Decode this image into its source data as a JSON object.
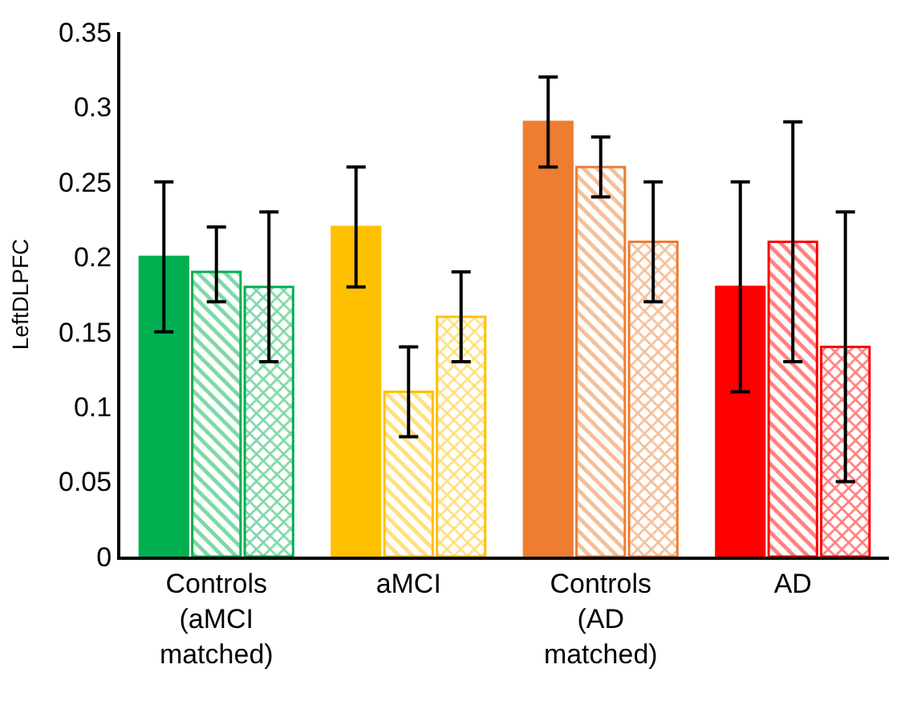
{
  "chart_data": {
    "type": "bar",
    "ylabel": "LeftDLPFC",
    "categories": [
      "Controls (aMCI matched)",
      "aMCI",
      "Controls (AD matched)",
      "AD"
    ],
    "series": [
      {
        "colors": [
          "#00b050",
          "#ffc000",
          "#ed7d31",
          "#ff0000"
        ],
        "values": [
          0.2,
          0.22,
          0.29,
          0.18
        ],
        "errors": [
          0.05,
          0.04,
          0.03,
          0.07
        ]
      },
      {
        "colors": [
          "#00b050",
          "#ffc000",
          "#ed7d31",
          "#ff0000"
        ],
        "values": [
          0.19,
          0.11,
          0.26,
          0.21
        ],
        "errors": [
          [
            0.17,
            0.22
          ],
          0.03,
          0.02,
          0.08
        ]
      },
      {
        "colors": [
          "#00b050",
          "#ffc000",
          "#ed7d31",
          "#ff0000"
        ],
        "values": [
          0.18,
          0.16,
          0.21,
          0.14
        ],
        "errors": [
          0.05,
          0.03,
          0.04,
          0.09
        ]
      }
    ],
    "ylim": [
      0,
      0.35
    ],
    "yticks": [
      0,
      0.05,
      0.1,
      0.15,
      0.2,
      0.25,
      0.3,
      0.35
    ]
  }
}
